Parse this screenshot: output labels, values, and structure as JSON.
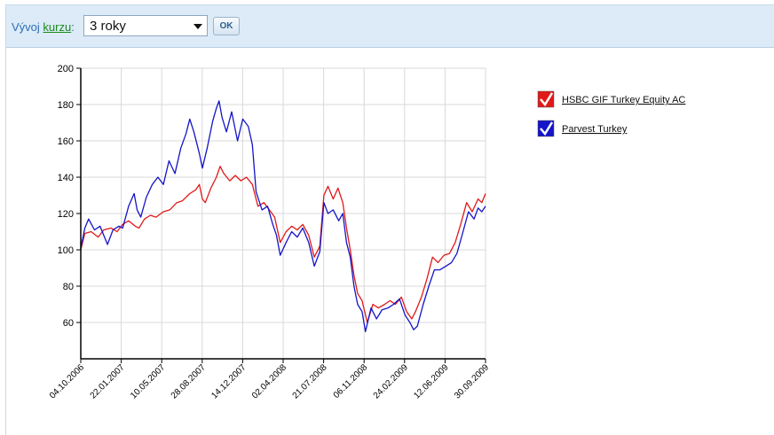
{
  "toolbar": {
    "label_prefix": "Vývoj ",
    "label_link": "kurzu",
    "label_suffix": ":",
    "period_selected": "3 roky",
    "ok_label": "OK"
  },
  "colors": {
    "series1": "#e01919",
    "series2": "#1414c8",
    "grid": "#d8d8d8"
  },
  "chart_data": {
    "type": "line",
    "title": "",
    "xlabel": "",
    "ylabel": "",
    "ylim": [
      40,
      200
    ],
    "yticks": [
      60,
      80,
      100,
      120,
      140,
      160,
      180,
      200
    ],
    "xlim": [
      "2006-10-04",
      "2009-09-30"
    ],
    "xtick_labels": [
      "04.10.2006",
      "22.01.2007",
      "10.05.2007",
      "28.08.2007",
      "14.12.2007",
      "02.04.2008",
      "21.07.2008",
      "06.11.2008",
      "24.02.2009",
      "12.06.2009",
      "30.09.2009"
    ],
    "grid": true,
    "legend": "right",
    "series": [
      {
        "name": "HSBC GIF Turkey Equity AC",
        "color": "#e01919",
        "points": [
          [
            "2006-10-04",
            100
          ],
          [
            "2006-10-15",
            109
          ],
          [
            "2006-11-01",
            110
          ],
          [
            "2006-11-20",
            107
          ],
          [
            "2006-12-05",
            111
          ],
          [
            "2006-12-25",
            112
          ],
          [
            "2007-01-10",
            110
          ],
          [
            "2007-01-25",
            114
          ],
          [
            "2007-02-10",
            116
          ],
          [
            "2007-02-28",
            113
          ],
          [
            "2007-03-10",
            112
          ],
          [
            "2007-03-25",
            117
          ],
          [
            "2007-04-10",
            119
          ],
          [
            "2007-04-25",
            118
          ],
          [
            "2007-05-15",
            121
          ],
          [
            "2007-06-01",
            122
          ],
          [
            "2007-06-20",
            126
          ],
          [
            "2007-07-05",
            127
          ],
          [
            "2007-07-25",
            131
          ],
          [
            "2007-08-10",
            133
          ],
          [
            "2007-08-20",
            136
          ],
          [
            "2007-08-28",
            128
          ],
          [
            "2007-09-05",
            126
          ],
          [
            "2007-09-20",
            134
          ],
          [
            "2007-10-05",
            140
          ],
          [
            "2007-10-15",
            146
          ],
          [
            "2007-10-25",
            142
          ],
          [
            "2007-11-10",
            138
          ],
          [
            "2007-11-25",
            141
          ],
          [
            "2007-12-10",
            138
          ],
          [
            "2007-12-25",
            140
          ],
          [
            "2008-01-10",
            136
          ],
          [
            "2008-01-25",
            124
          ],
          [
            "2008-02-10",
            126
          ],
          [
            "2008-02-25",
            122
          ],
          [
            "2008-03-10",
            118
          ],
          [
            "2008-03-25",
            104
          ],
          [
            "2008-04-10",
            110
          ],
          [
            "2008-04-25",
            113
          ],
          [
            "2008-05-10",
            111
          ],
          [
            "2008-05-25",
            114
          ],
          [
            "2008-06-10",
            108
          ],
          [
            "2008-06-25",
            96
          ],
          [
            "2008-07-10",
            102
          ],
          [
            "2008-07-21",
            130
          ],
          [
            "2008-08-01",
            135
          ],
          [
            "2008-08-15",
            128
          ],
          [
            "2008-08-28",
            134
          ],
          [
            "2008-09-10",
            126
          ],
          [
            "2008-09-20",
            112
          ],
          [
            "2008-09-30",
            100
          ],
          [
            "2008-10-10",
            86
          ],
          [
            "2008-10-20",
            76
          ],
          [
            "2008-11-01",
            72
          ],
          [
            "2008-11-15",
            60
          ],
          [
            "2008-11-30",
            70
          ],
          [
            "2008-12-15",
            68
          ],
          [
            "2009-01-01",
            70
          ],
          [
            "2009-01-15",
            72
          ],
          [
            "2009-01-30",
            70
          ],
          [
            "2009-02-15",
            74
          ],
          [
            "2009-03-01",
            66
          ],
          [
            "2009-03-15",
            62
          ],
          [
            "2009-03-25",
            66
          ],
          [
            "2009-04-10",
            74
          ],
          [
            "2009-04-25",
            84
          ],
          [
            "2009-05-10",
            96
          ],
          [
            "2009-05-25",
            93
          ],
          [
            "2009-06-10",
            97
          ],
          [
            "2009-06-25",
            98
          ],
          [
            "2009-07-10",
            104
          ],
          [
            "2009-07-25",
            114
          ],
          [
            "2009-08-10",
            126
          ],
          [
            "2009-08-25",
            121
          ],
          [
            "2009-09-10",
            128
          ],
          [
            "2009-09-20",
            126
          ],
          [
            "2009-09-30",
            131
          ]
        ]
      },
      {
        "name": "Parvest Turkey",
        "color": "#1414c8",
        "points": [
          [
            "2006-10-04",
            101
          ],
          [
            "2006-10-15",
            112
          ],
          [
            "2006-10-25",
            117
          ],
          [
            "2006-11-10",
            111
          ],
          [
            "2006-11-25",
            113
          ],
          [
            "2006-12-05",
            108
          ],
          [
            "2006-12-15",
            103
          ],
          [
            "2006-12-30",
            111
          ],
          [
            "2007-01-15",
            113
          ],
          [
            "2007-01-25",
            112
          ],
          [
            "2007-02-10",
            124
          ],
          [
            "2007-02-25",
            131
          ],
          [
            "2007-03-05",
            122
          ],
          [
            "2007-03-15",
            118
          ],
          [
            "2007-03-30",
            129
          ],
          [
            "2007-04-15",
            136
          ],
          [
            "2007-04-30",
            140
          ],
          [
            "2007-05-15",
            136
          ],
          [
            "2007-05-30",
            149
          ],
          [
            "2007-06-15",
            142
          ],
          [
            "2007-07-01",
            156
          ],
          [
            "2007-07-15",
            164
          ],
          [
            "2007-07-25",
            172
          ],
          [
            "2007-08-05",
            165
          ],
          [
            "2007-08-20",
            153
          ],
          [
            "2007-08-28",
            145
          ],
          [
            "2007-09-10",
            156
          ],
          [
            "2007-09-25",
            171
          ],
          [
            "2007-10-05",
            178
          ],
          [
            "2007-10-12",
            182
          ],
          [
            "2007-10-20",
            173
          ],
          [
            "2007-11-01",
            165
          ],
          [
            "2007-11-15",
            176
          ],
          [
            "2007-12-01",
            160
          ],
          [
            "2007-12-15",
            172
          ],
          [
            "2007-12-30",
            168
          ],
          [
            "2008-01-10",
            158
          ],
          [
            "2008-01-20",
            132
          ],
          [
            "2008-02-05",
            122
          ],
          [
            "2008-02-20",
            124
          ],
          [
            "2008-03-05",
            114
          ],
          [
            "2008-03-15",
            108
          ],
          [
            "2008-03-25",
            97
          ],
          [
            "2008-04-10",
            104
          ],
          [
            "2008-04-25",
            110
          ],
          [
            "2008-05-10",
            107
          ],
          [
            "2008-05-25",
            112
          ],
          [
            "2008-06-10",
            104
          ],
          [
            "2008-06-25",
            91
          ],
          [
            "2008-07-10",
            99
          ],
          [
            "2008-07-21",
            126
          ],
          [
            "2008-08-01",
            120
          ],
          [
            "2008-08-15",
            122
          ],
          [
            "2008-08-30",
            116
          ],
          [
            "2008-09-10",
            120
          ],
          [
            "2008-09-20",
            104
          ],
          [
            "2008-09-30",
            96
          ],
          [
            "2008-10-10",
            80
          ],
          [
            "2008-10-20",
            70
          ],
          [
            "2008-11-01",
            66
          ],
          [
            "2008-11-10",
            55
          ],
          [
            "2008-11-25",
            68
          ],
          [
            "2008-12-10",
            62
          ],
          [
            "2008-12-25",
            67
          ],
          [
            "2009-01-10",
            68
          ],
          [
            "2009-01-25",
            70
          ],
          [
            "2009-02-10",
            73
          ],
          [
            "2009-02-25",
            64
          ],
          [
            "2009-03-10",
            60
          ],
          [
            "2009-03-20",
            56
          ],
          [
            "2009-03-30",
            58
          ],
          [
            "2009-04-15",
            70
          ],
          [
            "2009-04-30",
            80
          ],
          [
            "2009-05-15",
            89
          ],
          [
            "2009-05-30",
            89
          ],
          [
            "2009-06-15",
            91
          ],
          [
            "2009-06-30",
            93
          ],
          [
            "2009-07-15",
            98
          ],
          [
            "2009-07-30",
            109
          ],
          [
            "2009-08-15",
            121
          ],
          [
            "2009-08-30",
            117
          ],
          [
            "2009-09-10",
            123
          ],
          [
            "2009-09-20",
            121
          ],
          [
            "2009-09-30",
            124
          ]
        ]
      }
    ]
  }
}
